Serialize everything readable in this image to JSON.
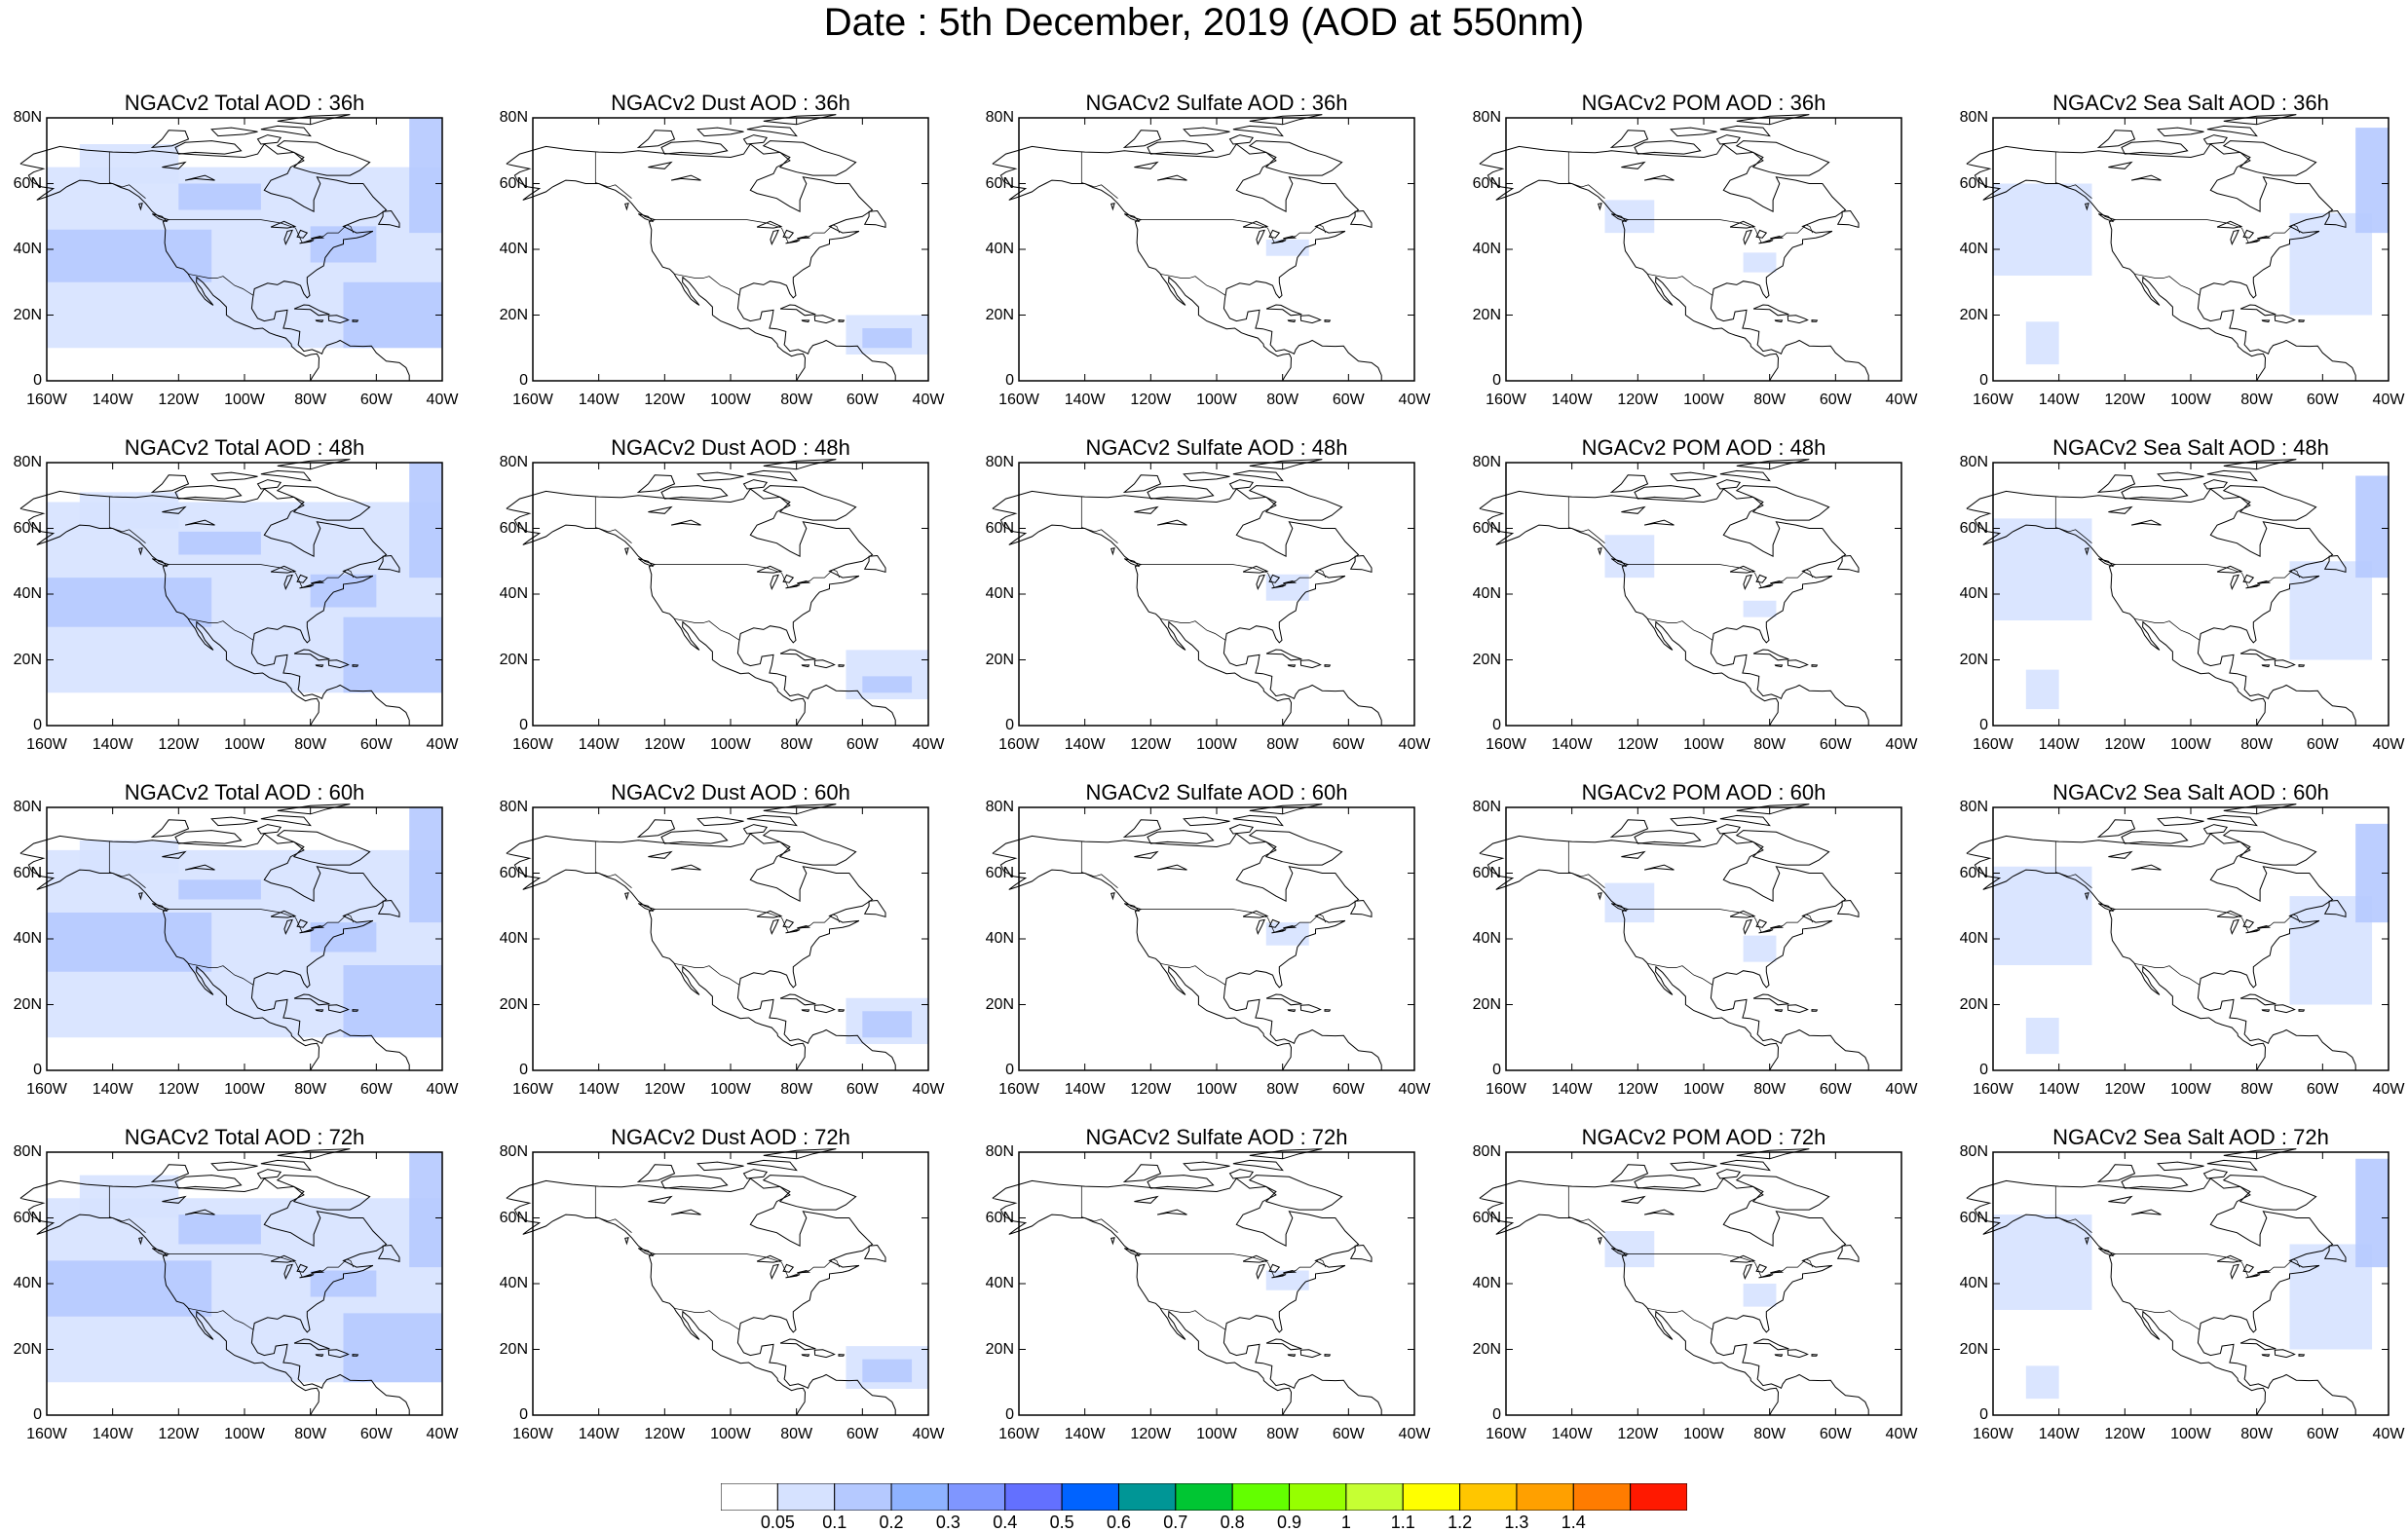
{
  "title": "Date : 5th December, 2019 (AOD at 550nm)",
  "panel_titles": [
    [
      "NGACv2 Total AOD : 36h",
      "NGACv2 Dust AOD : 36h",
      "NGACv2 Sulfate AOD : 36h",
      "NGACv2 POM AOD : 36h",
      "NGACv2 Sea Salt AOD : 36h"
    ],
    [
      "NGACv2 Total AOD : 48h",
      "NGACv2 Dust AOD : 48h",
      "NGACv2 Sulfate AOD : 48h",
      "NGACv2 POM AOD : 48h",
      "NGACv2 Sea Salt AOD : 48h"
    ],
    [
      "NGACv2 Total AOD : 60h",
      "NGACv2 Dust AOD : 60h",
      "NGACv2 Sulfate AOD : 60h",
      "NGACv2 POM AOD : 60h",
      "NGACv2 Sea Salt AOD : 60h"
    ],
    [
      "NGACv2 Total AOD : 72h",
      "NGACv2 Dust AOD : 72h",
      "NGACv2 Sulfate AOD : 72h",
      "NGACv2 POM AOD : 72h",
      "NGACv2 Sea Salt  AOD : 72h"
    ]
  ],
  "lat_ticks": [
    "80N",
    "60N",
    "40N",
    "20N",
    "0"
  ],
  "lon_ticks": [
    "160W",
    "140W",
    "120W",
    "100W",
    "80W",
    "60W",
    "40W"
  ],
  "colorbar": {
    "labels": [
      "0.05",
      "0.1",
      "0.2",
      "0.3",
      "0.4",
      "0.5",
      "0.6",
      "0.7",
      "0.8",
      "0.9",
      "1",
      "1.1",
      "1.2",
      "1.3",
      "1.4"
    ],
    "colors": [
      "#ffffff",
      "#d6e2ff",
      "#b5c9ff",
      "#8eb2ff",
      "#7f96ff",
      "#6370ff",
      "#0063ff",
      "#009696",
      "#00c633",
      "#63ff00",
      "#96ff00",
      "#c6ff33",
      "#ffff00",
      "#ffc600",
      "#ffa000",
      "#ff7c00",
      "#ff1900"
    ]
  }
}
